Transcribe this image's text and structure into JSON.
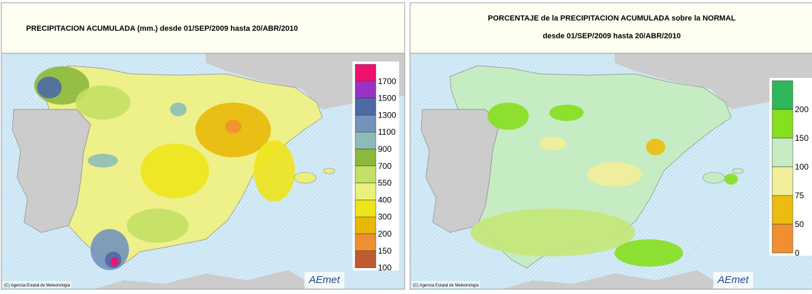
{
  "panels": [
    {
      "title": "PRECIPITACION ACUMULADA (mm.) desde 01/SEP/2009 hasta 20/ABR/2010",
      "legend": {
        "labels": [
          1700,
          1500,
          1300,
          1100,
          900,
          700,
          550,
          400,
          300,
          200,
          150,
          100
        ],
        "colors": [
          "#ee1170",
          "#9a32c8",
          "#4d6aa6",
          "#7393bb",
          "#8dbcb8",
          "#8cb83c",
          "#c3e064",
          "#e9f17a",
          "#eee41a",
          "#e8b808",
          "#ef8f32",
          "#c05a30"
        ]
      },
      "credit": "(C) Agencia Estatal de Meteorologia",
      "logo": "AEmet"
    },
    {
      "title": "PORCENTAJE de la PRECIPITACION ACUMULADA sobre la NORMAL",
      "subtitle": "desde 01/SEP/2009 hasta 20/ABR/2010",
      "legend": {
        "labels": [
          200,
          150,
          100,
          75,
          50,
          0
        ],
        "colors": [
          "#2fb75a",
          "#86e01e",
          "#c6ecc4",
          "#f2ee9a",
          "#ecbc10",
          "#ef8f32"
        ]
      },
      "credit": "(C) Agencia Estatal de Meteorologia",
      "logo": "AEmet"
    }
  ]
}
